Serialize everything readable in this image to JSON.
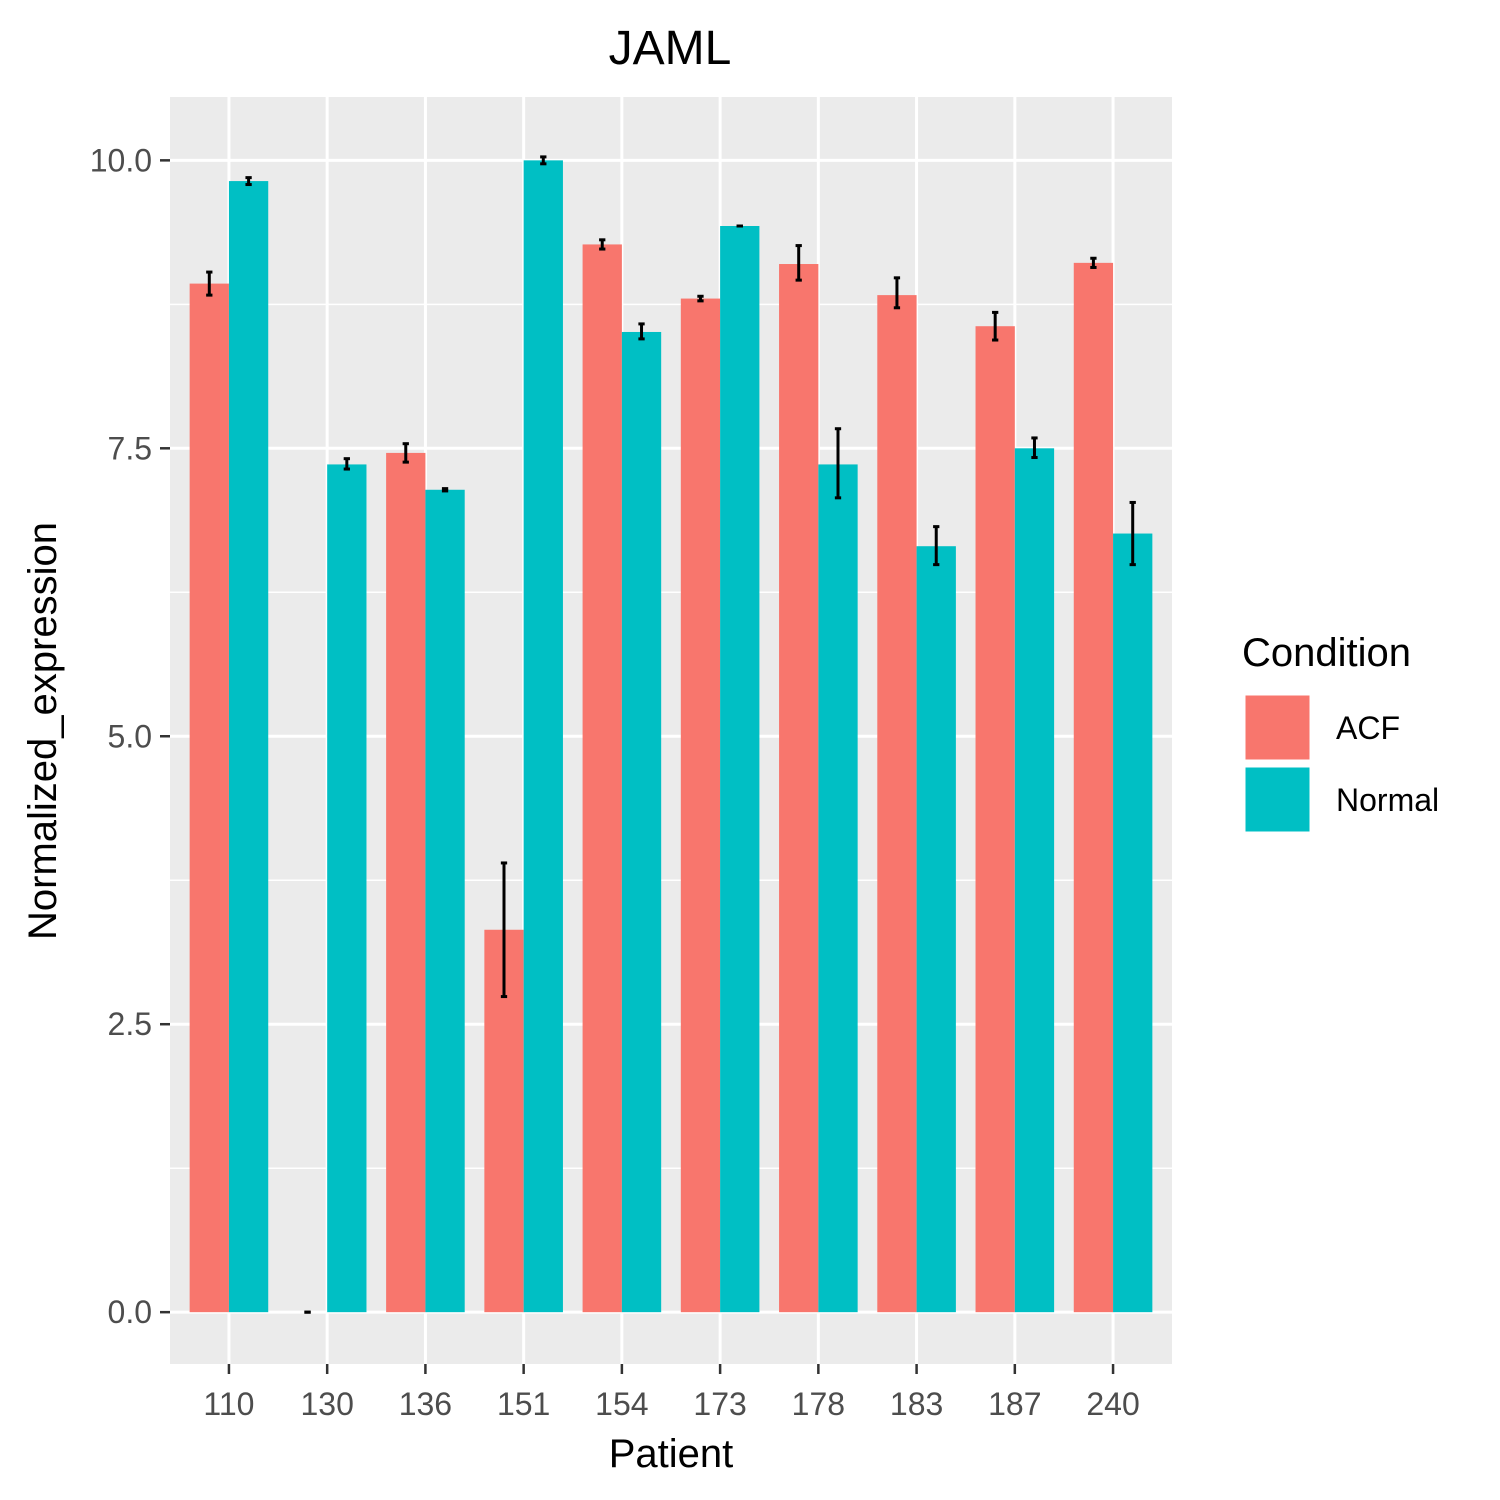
{
  "chart_data": {
    "type": "bar",
    "title": "JAML",
    "xlabel": "Patient",
    "ylabel": "Normalized_expression",
    "categories": [
      "110",
      "130",
      "136",
      "151",
      "154",
      "173",
      "178",
      "183",
      "187",
      "240"
    ],
    "ylim": [
      -0.45,
      10.55
    ],
    "yticks": [
      0.0,
      2.5,
      5.0,
      7.5,
      10.0
    ],
    "ytick_labels": [
      "0.0",
      "2.5",
      "5.0",
      "7.5",
      "10.0"
    ],
    "grid": true,
    "legend": {
      "title": "Condition",
      "position": "right"
    },
    "series": [
      {
        "name": "ACF",
        "color": "#F8766D",
        "values": [
          8.93,
          0.0,
          7.46,
          3.32,
          9.27,
          8.8,
          9.1,
          8.83,
          8.56,
          9.11
        ],
        "error_low": [
          8.83,
          0.0,
          7.38,
          2.74,
          9.23,
          8.78,
          8.96,
          8.72,
          8.44,
          9.07
        ],
        "error_high": [
          9.03,
          0.0,
          7.54,
          3.9,
          9.31,
          8.82,
          9.26,
          8.98,
          8.68,
          9.15
        ]
      },
      {
        "name": "Normal",
        "color": "#00BFC4",
        "values": [
          9.82,
          7.36,
          7.14,
          10.0,
          8.51,
          9.43,
          7.36,
          6.65,
          7.5,
          6.76
        ],
        "error_low": [
          9.79,
          7.32,
          7.13,
          9.97,
          8.45,
          9.43,
          7.07,
          6.49,
          7.42,
          6.49
        ],
        "error_high": [
          9.85,
          7.41,
          7.15,
          10.03,
          8.58,
          9.43,
          7.67,
          6.82,
          7.59,
          7.03
        ]
      }
    ]
  }
}
